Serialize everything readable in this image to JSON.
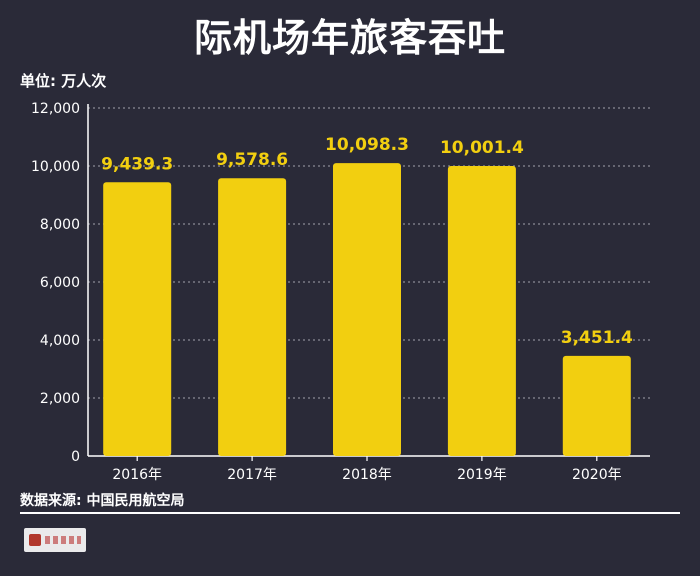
{
  "title": "际机场年旅客吞吐",
  "unit_label": "单位: 万人次",
  "source": "数据来源: 中国民用航空局",
  "colors": {
    "background": "#2a2a38",
    "bar": "#f2cf10",
    "value_label": "#f2cf10",
    "text": "#ffffff",
    "grid": "#8a8a95"
  },
  "logo_icon": "news-logo-icon",
  "chart_data": {
    "type": "bar",
    "categories": [
      "2016年",
      "2017年",
      "2018年",
      "2019年",
      "2020年"
    ],
    "values": [
      9439.3,
      9578.6,
      10098.3,
      10001.4,
      3451.4
    ],
    "value_labels": [
      "9,439.3",
      "9,578.6",
      "10,098.3",
      "10,001.4",
      "3,451.4"
    ],
    "yticks": [
      0,
      2000,
      4000,
      6000,
      8000,
      10000,
      12000
    ],
    "ytick_labels": [
      "0",
      "2,000",
      "4,000",
      "6,000",
      "8,000",
      "10,000",
      "12,000"
    ],
    "ylim": [
      0,
      12000
    ],
    "grid": true,
    "legend": false
  }
}
